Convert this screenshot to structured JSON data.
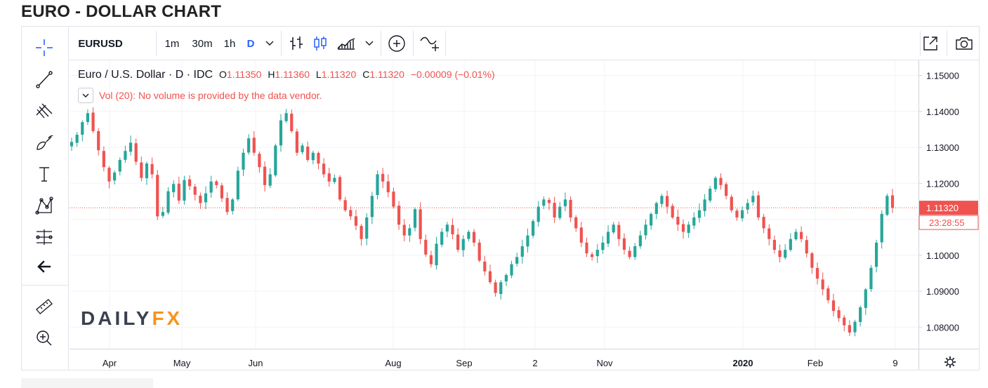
{
  "page": {
    "title": "EURO - DOLLAR CHART"
  },
  "toolbar": {
    "symbol": "EURUSD",
    "intervals": [
      "1m",
      "30m",
      "1h",
      "D"
    ],
    "active_interval": "D",
    "icons": [
      "chevron-down-icon",
      "bar-style-icon",
      "candle-style-icon",
      "area-style-icon",
      "chevron-down-icon",
      "add-indicator-icon",
      "compare-icon",
      "fullscreen-icon",
      "camera-icon"
    ]
  },
  "left_tools": [
    "crosshair-icon",
    "trend-line-icon",
    "pitchfork-icon",
    "brush-icon",
    "text-icon",
    "pattern-icon",
    "measure-icon",
    "back-arrow-icon",
    "ruler-icon",
    "zoom-in-icon"
  ],
  "legend": {
    "name": "Euro / U.S. Dollar",
    "interval": "D",
    "source": "IDC",
    "open_label": "O",
    "open": "1.11350",
    "high_label": "H",
    "high": "1.11360",
    "low_label": "L",
    "low": "1.11320",
    "close_label": "C",
    "close": "1.11320",
    "change": "−0.00009 (−0.01%)",
    "volume_note": "Vol (20): No volume is provided by the data vendor."
  },
  "watermark": {
    "part1": "DAILY",
    "part2": "FX"
  },
  "colors": {
    "up": "#26a69a",
    "down": "#ef5350",
    "accent": "#2962ff",
    "grid": "#f0f3fa"
  },
  "chart_data": {
    "type": "candlestick",
    "ylim": [
      1.074,
      1.154
    ],
    "y_ticks": [
      "1.15000",
      "1.14000",
      "1.13000",
      "1.12000",
      "1.11000",
      "1.10000",
      "1.09000",
      "1.08000"
    ],
    "x_tick_labels": [
      "Apr",
      "May",
      "Jun",
      "Aug",
      "Sep",
      "2",
      "Nov",
      "2020",
      "Feb",
      "9"
    ],
    "last_price": "1.11320",
    "countdown": "23:28:55",
    "close_series": [
      1.1315,
      1.1335,
      1.137,
      1.1395,
      1.1345,
      1.1292,
      1.1245,
      1.1205,
      1.123,
      1.1265,
      1.129,
      1.1313,
      1.126,
      1.1215,
      1.1255,
      1.1225,
      1.1108,
      1.112,
      1.1178,
      1.1198,
      1.1152,
      1.1209,
      1.1192,
      1.1168,
      1.1145,
      1.1172,
      1.1205,
      1.1195,
      1.1158,
      1.112,
      1.1155,
      1.1235,
      1.1285,
      1.1325,
      1.1285,
      1.1245,
      1.1195,
      1.1225,
      1.1305,
      1.1375,
      1.1395,
      1.1345,
      1.1285,
      1.1305,
      1.1265,
      1.1285,
      1.1255,
      1.1225,
      1.1205,
      1.1215,
      1.1155,
      1.1125,
      1.1108,
      1.1082,
      1.1045,
      1.1105,
      1.1165,
      1.1225,
      1.1205,
      1.1175,
      1.1135,
      1.1085,
      1.1055,
      1.1075,
      1.1128,
      1.1045,
      1.1002,
      1.0975,
      1.1032,
      1.1065,
      1.1085,
      1.1058,
      1.1015,
      1.1045,
      1.1065,
      1.1035,
      1.0985,
      1.0955,
      1.0925,
      1.0895,
      1.0925,
      1.0945,
      1.0975,
      1.0995,
      1.1025,
      1.1055,
      1.1095,
      1.1135,
      1.1155,
      1.1145,
      1.1105,
      1.1135,
      1.1155,
      1.1105,
      1.1075,
      1.1035,
      1.1005,
      1.0995,
      1.1015,
      1.1035,
      1.1065,
      1.1085,
      1.1045,
      1.1015,
      1.0995,
      1.1025,
      1.1055,
      1.1085,
      1.1115,
      1.1145,
      1.1165,
      1.1135,
      1.1105,
      1.1085,
      1.1065,
      1.1085,
      1.1105,
      1.1125,
      1.1155,
      1.1185,
      1.1215,
      1.1195,
      1.1165,
      1.1125,
      1.1105,
      1.1125,
      1.1145,
      1.1165,
      1.1105,
      1.1075,
      1.1045,
      1.1015,
      1.0995,
      1.1015,
      1.1045,
      1.1065,
      1.1045,
      1.1005,
      1.0965,
      1.0935,
      1.0905,
      1.0875,
      1.0845,
      1.0825,
      1.0805,
      1.0785,
      1.0815,
      1.0855,
      1.0905,
      1.0965,
      1.1035,
      1.1115,
      1.1165,
      1.1132
    ]
  }
}
